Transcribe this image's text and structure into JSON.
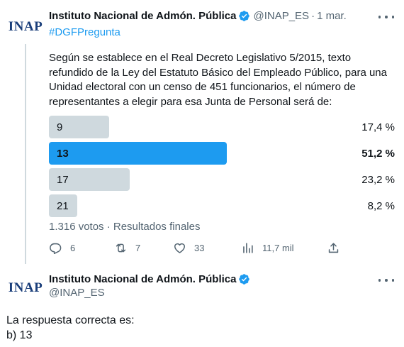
{
  "tweet1": {
    "avatar_text": "INAP",
    "display_name": "Instituto Nacional de Admón. Pública",
    "handle": "@INAP_ES",
    "separator": "·",
    "date": "1 mar.",
    "hashtag": "#DGFPregunta",
    "text": "Según se establece en el Real Decreto Legislativo 5/2015, texto refundido de la Ley del Estatuto Básico del Empleado Público, para una Unidad electoral con un censo de 451 funcionarios, el número de representantes a elegir para esa Junta de Personal será de:",
    "poll": {
      "options": [
        {
          "label": "9",
          "percent_text": "17,4 %",
          "percent": 17.4,
          "winner": false
        },
        {
          "label": "13",
          "percent_text": "51,2 %",
          "percent": 51.2,
          "winner": true
        },
        {
          "label": "17",
          "percent_text": "23,2 %",
          "percent": 23.2,
          "winner": false
        },
        {
          "label": "21",
          "percent_text": "8,2 %",
          "percent": 8.2,
          "winner": false
        }
      ],
      "meta": "1.316 votos · Resultados finales"
    },
    "actions": {
      "replies": "6",
      "retweets": "7",
      "likes": "33",
      "views": "11,7 mil"
    }
  },
  "tweet2": {
    "avatar_text": "INAP",
    "display_name": "Instituto Nacional de Admón. Pública",
    "handle": "@INAP_ES",
    "answer_line1": "La respuesta correcta es:",
    "answer_line2": "b) 13"
  },
  "colors": {
    "accent": "#1d9bf0",
    "bar": "#cfd9de",
    "secondary_text": "#536471",
    "avatar_text": "#1a3e7a"
  },
  "icons": [
    "verified-badge-icon",
    "more-icon",
    "reply-icon",
    "retweet-icon",
    "like-icon",
    "views-icon",
    "share-icon"
  ]
}
